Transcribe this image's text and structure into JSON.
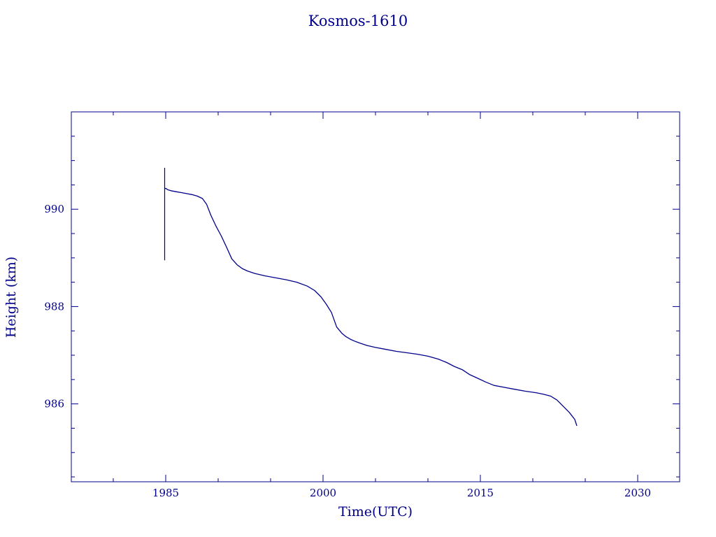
{
  "chart_data": {
    "type": "line",
    "title": "Kosmos-1610",
    "xlabel": "Time(UTC)",
    "ylabel": "Height (km)",
    "xlim": [
      1976,
      2034
    ],
    "ylim": [
      984.4,
      992.0
    ],
    "x_ticks": [
      1985,
      2000,
      2015,
      2030
    ],
    "x_tick_labels": [
      "1985",
      "2000",
      "2015",
      "2030"
    ],
    "y_ticks": [
      986,
      988,
      990
    ],
    "y_tick_labels": [
      "986",
      "988",
      "990"
    ],
    "grid": false,
    "legend": "none",
    "color": "#00008b",
    "spike": {
      "x": 1984.9,
      "y_min": 988.95,
      "y_max": 990.85
    },
    "series": [
      {
        "x": [
          1984.9,
          1985.0,
          1985.2,
          1985.5,
          1986.0,
          1986.5,
          1987.0,
          1987.5,
          1988.0,
          1988.5,
          1988.9,
          1989.3,
          1989.8,
          1990.3,
          1990.8,
          1991.3,
          1991.8,
          1992.3,
          1992.8,
          1993.5,
          1994.5,
          1995.5,
          1996.5,
          1997.5,
          1998.5,
          1999.2,
          1999.8,
          2000.3,
          2000.8,
          2001.3,
          2001.8,
          2002.2,
          2002.6,
          2003.0,
          2003.5,
          2004.2,
          2005.0,
          2006.0,
          2007.0,
          2008.0,
          2009.0,
          2010.0,
          2011.0,
          2011.8,
          2012.5,
          2013.3,
          2014.0,
          2014.8,
          2015.5,
          2016.3,
          2017.3,
          2018.3,
          2019.3,
          2020.3,
          2021.0,
          2021.7,
          2022.3,
          2022.9,
          2023.5,
          2024.0,
          2024.2
        ],
        "y": [
          990.42,
          990.43,
          990.4,
          990.38,
          990.36,
          990.34,
          990.32,
          990.3,
          990.27,
          990.22,
          990.1,
          989.88,
          989.65,
          989.45,
          989.22,
          988.98,
          988.86,
          988.78,
          988.73,
          988.68,
          988.63,
          988.59,
          988.55,
          988.5,
          988.42,
          988.33,
          988.2,
          988.05,
          987.88,
          987.58,
          987.45,
          987.38,
          987.33,
          987.29,
          987.25,
          987.2,
          987.16,
          987.12,
          987.08,
          987.05,
          987.02,
          986.98,
          986.92,
          986.85,
          986.77,
          986.7,
          986.6,
          986.52,
          986.45,
          986.38,
          986.34,
          986.3,
          986.26,
          986.23,
          986.2,
          986.16,
          986.08,
          985.95,
          985.82,
          985.68,
          985.55
        ]
      }
    ]
  }
}
